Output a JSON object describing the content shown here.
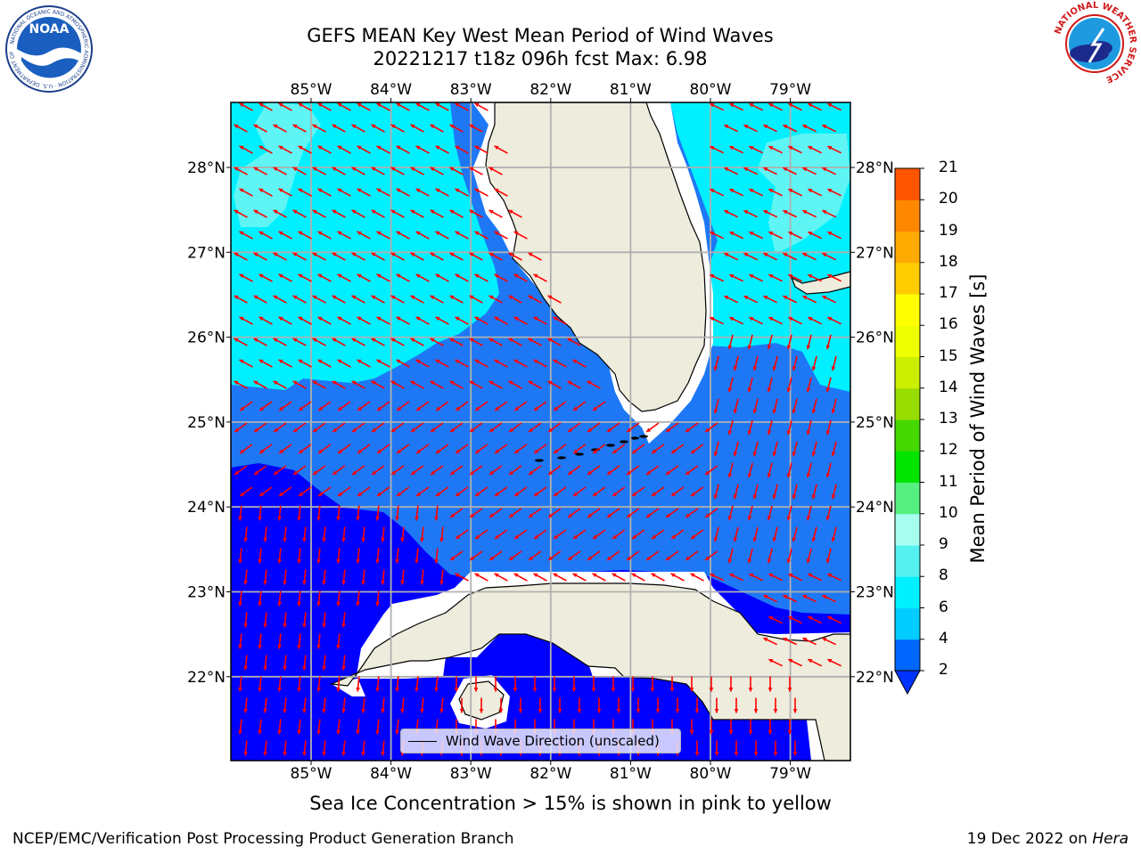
{
  "header": {
    "title_line1": "GEFS MEAN Key West Mean Period of Wind Waves",
    "title_line2": "20221217 t18z 096h fcst   Max: 6.98"
  },
  "map": {
    "lon_labels": [
      "85°W",
      "84°W",
      "83°W",
      "82°W",
      "81°W",
      "80°W",
      "79°W"
    ],
    "lat_labels": [
      "28°N",
      "27°N",
      "26°N",
      "25°N",
      "24°N",
      "23°N",
      "22°N"
    ],
    "extent": {
      "lon_min": -86.0,
      "lon_max": -78.3,
      "lat_min": 21.0,
      "lat_max": 28.75
    },
    "legend_text": "Wind Wave Direction (unscaled)"
  },
  "colorbar": {
    "title": "Mean Period of Wind Waves [s]",
    "ticks": [
      "2",
      "4",
      "6",
      "8",
      "9",
      "10",
      "11",
      "12",
      "13",
      "14",
      "15",
      "16",
      "17",
      "18",
      "19",
      "20",
      "21"
    ],
    "level_colors": [
      "#0066ff",
      "#00ccff",
      "#00f0ff",
      "#55f0f0",
      "#a8fff0",
      "#55f080",
      "#00e400",
      "#44d800",
      "#99dd00",
      "#ccee00",
      "#eeff00",
      "#ffff00",
      "#ffcc00",
      "#ffaa00",
      "#ff8800",
      "#ff5500",
      "#ff3300",
      "#ff0000"
    ],
    "under_color": "#0033ff"
  },
  "palette": {
    "deep": "#0000ff",
    "mid": "#1e78f5",
    "shallow": "#00f0ff",
    "pale": "#5ff5f5",
    "land": "#eeecdc",
    "arrow": "#ff0000"
  },
  "footer": {
    "caption": "Sea Ice Concentration > 15% is shown in pink to yellow",
    "left": "NCEP/EMC/Verification Post Processing Product Generation Branch",
    "right_date": "19 Dec 2022 on",
    "right_host": "Hera"
  },
  "logos": {
    "noaa": "NOAA",
    "noaa_ring": "NATIONAL OCEANIC AND ATMOSPHERIC ADMINISTRATION · U.S. DEPARTMENT OF COMMERCE",
    "nws_ring": "NATIONAL WEATHER SERVICE"
  }
}
